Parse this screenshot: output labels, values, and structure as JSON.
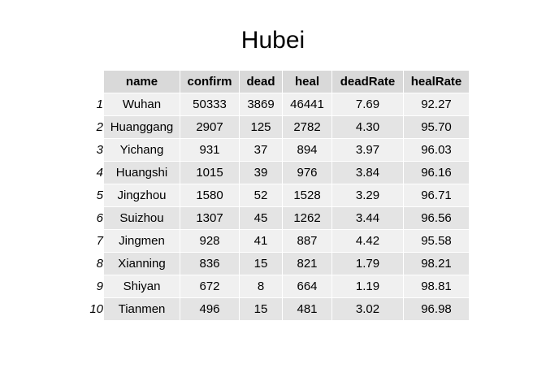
{
  "chart_data": {
    "type": "table",
    "title": "Hubei",
    "columns": [
      "name",
      "confirm",
      "dead",
      "heal",
      "deadRate",
      "healRate"
    ],
    "rows": [
      {
        "n": "1",
        "cells": [
          "Wuhan",
          "50333",
          "3869",
          "46441",
          "7.69",
          "92.27"
        ]
      },
      {
        "n": "2",
        "cells": [
          "Huanggang",
          "2907",
          "125",
          "2782",
          "4.30",
          "95.70"
        ]
      },
      {
        "n": "3",
        "cells": [
          "Yichang",
          "931",
          "37",
          "894",
          "3.97",
          "96.03"
        ]
      },
      {
        "n": "4",
        "cells": [
          "Huangshi",
          "1015",
          "39",
          "976",
          "3.84",
          "96.16"
        ]
      },
      {
        "n": "5",
        "cells": [
          "Jingzhou",
          "1580",
          "52",
          "1528",
          "3.29",
          "96.71"
        ]
      },
      {
        "n": "6",
        "cells": [
          "Suizhou",
          "1307",
          "45",
          "1262",
          "3.44",
          "96.56"
        ]
      },
      {
        "n": "7",
        "cells": [
          "Jingmen",
          "928",
          "41",
          "887",
          "4.42",
          "95.58"
        ]
      },
      {
        "n": "8",
        "cells": [
          "Xianning",
          "836",
          "15",
          "821",
          "1.79",
          "98.21"
        ]
      },
      {
        "n": "9",
        "cells": [
          "Shiyan",
          "672",
          "8",
          "664",
          "1.19",
          "98.81"
        ]
      },
      {
        "n": "10",
        "cells": [
          "Tianmen",
          "496",
          "15",
          "481",
          "3.02",
          "96.98"
        ]
      }
    ]
  }
}
